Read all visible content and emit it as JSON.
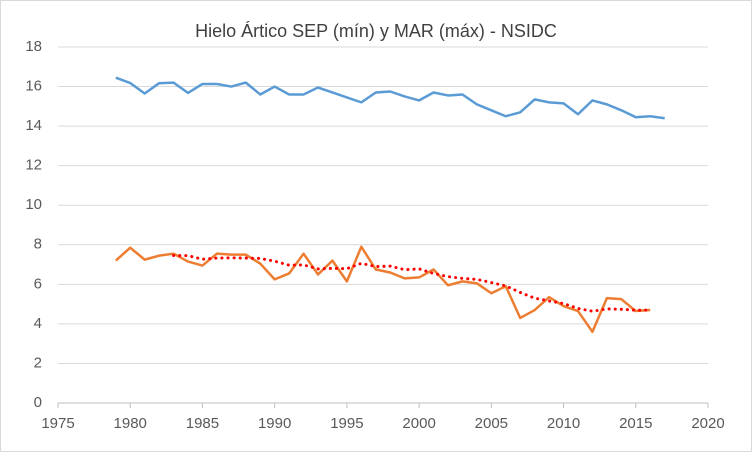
{
  "chart_data": {
    "type": "line",
    "title": "Hielo Ártico SEP (mín) y MAR (máx)  - NSIDC",
    "xlim": [
      1975,
      2020
    ],
    "xticks": [
      1975,
      1980,
      1985,
      1990,
      1995,
      2000,
      2005,
      2010,
      2015,
      2020
    ],
    "ylim": [
      0,
      18
    ],
    "yticks": [
      0,
      2,
      4,
      6,
      8,
      10,
      12,
      14,
      16,
      18
    ],
    "grid": true,
    "series": [
      {
        "color": "#5b9bd5",
        "style": "solid",
        "x": [
          1979,
          1980,
          1981,
          1982,
          1983,
          1984,
          1985,
          1986,
          1987,
          1988,
          1989,
          1990,
          1991,
          1992,
          1993,
          1994,
          1995,
          1996,
          1997,
          1998,
          1999,
          2000,
          2001,
          2002,
          2003,
          2004,
          2005,
          2006,
          2007,
          2008,
          2009,
          2010,
          2011,
          2012,
          2013,
          2014,
          2015,
          2016,
          2017
        ],
        "values": [
          16.45,
          16.18,
          15.65,
          16.17,
          16.2,
          15.68,
          16.13,
          16.13,
          16.0,
          16.2,
          15.6,
          16.0,
          15.6,
          15.6,
          15.95,
          15.7,
          15.45,
          15.2,
          15.7,
          15.75,
          15.5,
          15.3,
          15.7,
          15.55,
          15.6,
          15.1,
          14.8,
          14.5,
          14.7,
          15.35,
          15.2,
          15.15,
          14.6,
          15.3,
          15.1,
          14.8,
          14.45,
          14.5,
          14.4
        ]
      },
      {
        "color": "#ed7d31",
        "style": "solid",
        "x": [
          1979,
          1980,
          1981,
          1982,
          1983,
          1984,
          1985,
          1986,
          1987,
          1988,
          1989,
          1990,
          1991,
          1992,
          1993,
          1994,
          1995,
          1996,
          1997,
          1998,
          1999,
          2000,
          2001,
          2002,
          2003,
          2004,
          2005,
          2006,
          2007,
          2008,
          2009,
          2010,
          2011,
          2012,
          2013,
          2014,
          2015,
          2016
        ],
        "values": [
          7.2,
          7.85,
          7.25,
          7.45,
          7.55,
          7.15,
          6.95,
          7.55,
          7.5,
          7.5,
          7.05,
          6.25,
          6.55,
          7.55,
          6.5,
          7.2,
          6.15,
          7.9,
          6.75,
          6.6,
          6.3,
          6.35,
          6.75,
          5.95,
          6.15,
          6.05,
          5.55,
          5.9,
          4.3,
          4.7,
          5.35,
          4.9,
          4.65,
          3.6,
          5.3,
          5.25,
          4.65,
          4.7
        ]
      },
      {
        "color": "#ff0000",
        "style": "dotted",
        "x": [
          1983,
          1984,
          1985,
          1986,
          1987,
          1988,
          1989,
          1990,
          1991,
          1992,
          1993,
          1994,
          1995,
          1996,
          1997,
          1998,
          1999,
          2000,
          2001,
          2002,
          2003,
          2004,
          2005,
          2006,
          2007,
          2008,
          2009,
          2010,
          2011,
          2012,
          2013,
          2014,
          2015,
          2016
        ],
        "values": [
          7.46,
          7.45,
          7.27,
          7.33,
          7.34,
          7.33,
          7.31,
          7.17,
          6.97,
          6.98,
          6.78,
          6.81,
          6.79,
          7.06,
          6.9,
          6.92,
          6.74,
          6.78,
          6.55,
          6.39,
          6.3,
          6.25,
          6.09,
          5.92,
          5.59,
          5.3,
          5.16,
          5.03,
          4.78,
          4.64,
          4.76,
          4.74,
          4.69,
          4.7
        ]
      }
    ]
  }
}
